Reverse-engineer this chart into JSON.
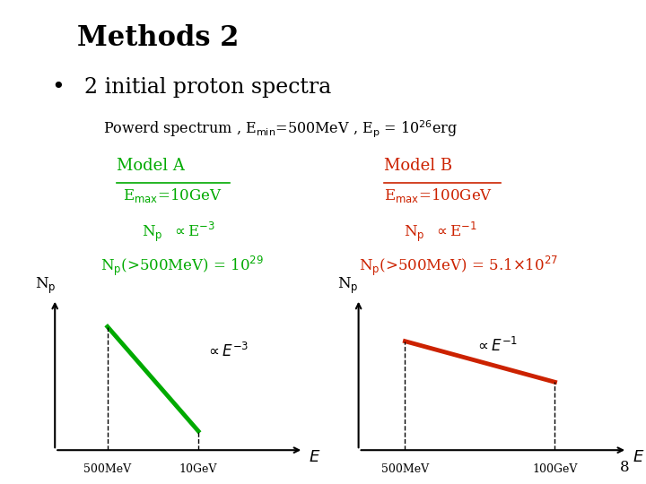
{
  "title": "Methods 2",
  "bullet_text": "2 initial proton spectra",
  "subtitle": "Powerd spectrum , E$_{\\rm min}$=500MeV , E$_{\\rm p}$ = 10$^{26}$erg",
  "model_a_label": "Model A",
  "model_a_emax": "E$_{\\rm max}$=10GeV",
  "model_a_np": "N$_{\\rm p}$  $\\propto$E$^{-3}$",
  "model_a_np500": "N$_{\\rm p}$(>500MeV) = 10$^{29}$",
  "model_b_label": "Model B",
  "model_b_emax": "E$_{\\rm max}$=100GeV",
  "model_b_np": "N$_{\\rm p}$  $\\propto$E$^{-1}$",
  "model_b_np500": "N$_{\\rm p}$(>500MeV) = 5.1$\\times$10$^{27}$",
  "green": "#00aa00",
  "red": "#cc2200",
  "black": "#000000",
  "white": "#ffffff",
  "annot_a": "$\\propto E^{-3}$",
  "annot_b": "$\\propto E^{-1}$",
  "page_num": "8"
}
